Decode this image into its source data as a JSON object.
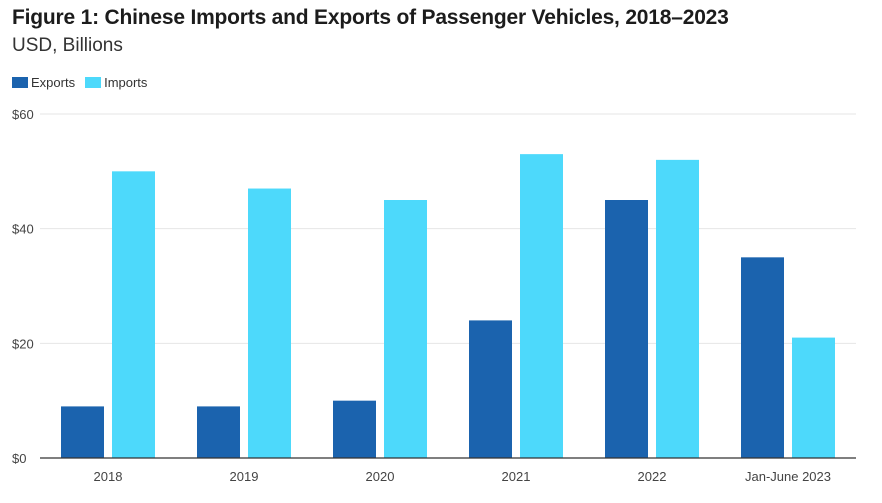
{
  "colors": {
    "exports": "#1b63ae",
    "imports": "#4dd9fb",
    "grid": "#e6e6e6",
    "axis": "#333333",
    "text": "#444444"
  },
  "chart_data": {
    "type": "bar",
    "title": "Figure 1: Chinese Imports and Exports of Passenger Vehicles, 2018–2023",
    "subtitle": "USD, Billions",
    "xlabel": "",
    "ylabel": "USD, Billions",
    "categories": [
      "2018",
      "2019",
      "2020",
      "2021",
      "2022",
      "Jan-June 2023"
    ],
    "series": [
      {
        "name": "Exports",
        "values": [
          9,
          9,
          10,
          24,
          45,
          35
        ]
      },
      {
        "name": "Imports",
        "values": [
          50,
          47,
          45,
          53,
          52,
          21
        ]
      }
    ],
    "ylim": [
      0,
      60
    ],
    "yticks": [
      0,
      20,
      40,
      60
    ],
    "ytick_labels": [
      "$0",
      "$20",
      "$40",
      "$60"
    ],
    "grid": true,
    "legend_position": "top-left"
  }
}
